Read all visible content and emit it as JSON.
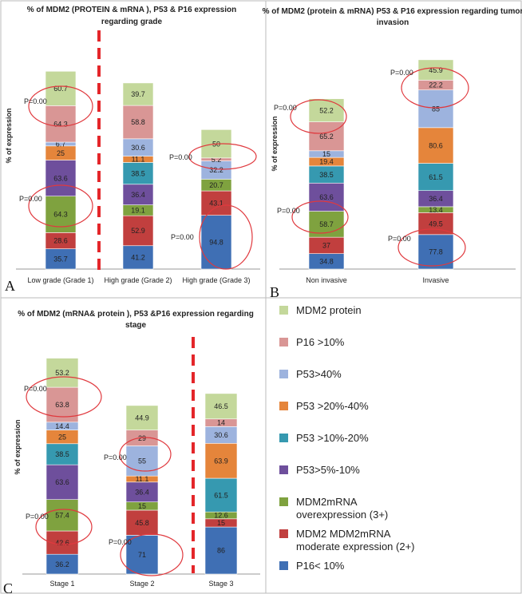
{
  "colors": {
    "MDM2 protein": "#c4d89b",
    "P16 >10%": "#d99695",
    "P53>40%": "#9db3de",
    "P53 >20%-40%": "#e5853b",
    "P53 >10%-20%": "#3699b0",
    "P53>5%-10%": "#6e4f9c",
    "MDM2mRNA overexpression (3+)": "#7fa23f",
    "MDM2 MDM2mRNA moderate expression (2+)": "#c13f3e",
    "P16< 10%": "#3f6fb4"
  },
  "legend": {
    "items": [
      {
        "lines": [
          "MDM2 protein"
        ],
        "key": "MDM2 protein"
      },
      {
        "lines": [
          "P16 >10%"
        ],
        "key": "P16 >10%"
      },
      {
        "lines": [
          "P53>40%"
        ],
        "key": "P53>40%"
      },
      {
        "lines": [
          "P53 >20%-40%"
        ],
        "key": "P53 >20%-40%"
      },
      {
        "lines": [
          "P53 >10%-20%"
        ],
        "key": "P53 >10%-20%"
      },
      {
        "lines": [
          "P53>5%-10%"
        ],
        "key": "P53>5%-10%"
      },
      {
        "lines": [
          "MDM2mRNA",
          "overexpression (3+)"
        ],
        "key": "MDM2mRNA overexpression (3+)"
      },
      {
        "lines": [
          "MDM2 MDM2mRNA",
          "moderate expression (2+)"
        ],
        "key": "MDM2 MDM2mRNA moderate expression (2+)"
      },
      {
        "lines": [
          "P16< 10%"
        ],
        "key": "P16< 10%"
      }
    ]
  },
  "chart_data": [
    {
      "type": "bar",
      "stacked": true,
      "panel_label": "A",
      "title_lines": [
        "% of  MDM2 (PROTEIN &  mRNA ), P53 &  P16 expression",
        "regarding  grade"
      ],
      "ylabel": "% of expression",
      "categories": [
        "Low grade (Grade 1)",
        "High grade (Grade 2)",
        "High grade (Grade 3)"
      ],
      "series": [
        {
          "name": "P16< 10%",
          "values": [
            35.7,
            41.2,
            94.8
          ]
        },
        {
          "name": "MDM2 MDM2mRNA moderate expression (2+)",
          "values": [
            28.6,
            52.9,
            43.1
          ]
        },
        {
          "name": "MDM2mRNA overexpression (3+)",
          "values": [
            64.3,
            19.1,
            20.7
          ]
        },
        {
          "name": "P53>5%-10%",
          "values": [
            63.6,
            36.4,
            0
          ]
        },
        {
          "name": "P53 >10%-20%",
          "values": [
            0,
            38.5,
            0
          ]
        },
        {
          "name": "P53 >20%-40%",
          "values": [
            25,
            11.1,
            0
          ]
        },
        {
          "name": "P53>40%",
          "values": [
            6.7,
            30.6,
            32.2
          ]
        },
        {
          "name": "P16 >10%",
          "values": [
            64.3,
            58.8,
            5.2
          ]
        },
        {
          "name": "MDM2 protein",
          "values": [
            60.7,
            39.7,
            50
          ]
        }
      ],
      "annotations": [
        "P=0.00",
        "P=0.00",
        "P=0.00",
        "P=0.00"
      ]
    },
    {
      "type": "bar",
      "stacked": true,
      "panel_label": "B",
      "title_lines": [
        "% of  MDM2 (protein & mRNA) P53 & P16 expression regarding tumor",
        "invasion"
      ],
      "ylabel": "% of expression",
      "categories": [
        "Non invasive",
        "Invasive"
      ],
      "series": [
        {
          "name": "P16< 10%",
          "values": [
            34.8,
            77.8
          ]
        },
        {
          "name": "MDM2 MDM2mRNA moderate expression (2+)",
          "values": [
            37,
            49.5
          ]
        },
        {
          "name": "MDM2mRNA overexpression (3+)",
          "values": [
            58.7,
            13.4
          ]
        },
        {
          "name": "P53>5%-10%",
          "values": [
            63.6,
            36.4
          ]
        },
        {
          "name": "P53 >10%-20%",
          "values": [
            38.5,
            61.5
          ]
        },
        {
          "name": "P53 >20%-40%",
          "values": [
            19.4,
            80.6
          ]
        },
        {
          "name": "P53>40%",
          "values": [
            15,
            85
          ]
        },
        {
          "name": "P16 >10%",
          "values": [
            65.2,
            22.2
          ]
        },
        {
          "name": "MDM2 protein",
          "values": [
            52.2,
            45.9
          ]
        }
      ],
      "annotations": [
        "P=0.00",
        "P=0.00",
        "P=0.00",
        "P=0.00"
      ]
    },
    {
      "type": "bar",
      "stacked": true,
      "panel_label": "C",
      "title_lines": [
        "% of  MDM2 (mRNA& protein ), P53 &P16  expression regarding",
        "stage"
      ],
      "ylabel": "% of expression",
      "categories": [
        "Stage 1",
        "Stage 2",
        "Stage 3"
      ],
      "series": [
        {
          "name": "P16< 10%",
          "values": [
            36.2,
            71,
            86
          ]
        },
        {
          "name": "MDM2 MDM2mRNA moderate expression (2+)",
          "values": [
            42.6,
            45.8,
            15
          ]
        },
        {
          "name": "MDM2mRNA overexpression (3+)",
          "values": [
            57.4,
            15,
            12.6
          ]
        },
        {
          "name": "P53>5%-10%",
          "values": [
            63.6,
            36.4,
            0
          ]
        },
        {
          "name": "P53 >10%-20%",
          "values": [
            38.5,
            0,
            61.5
          ]
        },
        {
          "name": "P53 >20%-40%",
          "values": [
            25,
            11.1,
            63.9
          ]
        },
        {
          "name": "P53>40%",
          "values": [
            14.4,
            55,
            30.6
          ]
        },
        {
          "name": "P16 >10%",
          "values": [
            63.8,
            29,
            14
          ]
        },
        {
          "name": "MDM2 protein",
          "values": [
            53.2,
            44.9,
            46.5
          ]
        }
      ],
      "annotations": [
        "P=0.00",
        "P=0.00",
        "P=0.00",
        "P=0.00"
      ]
    }
  ]
}
